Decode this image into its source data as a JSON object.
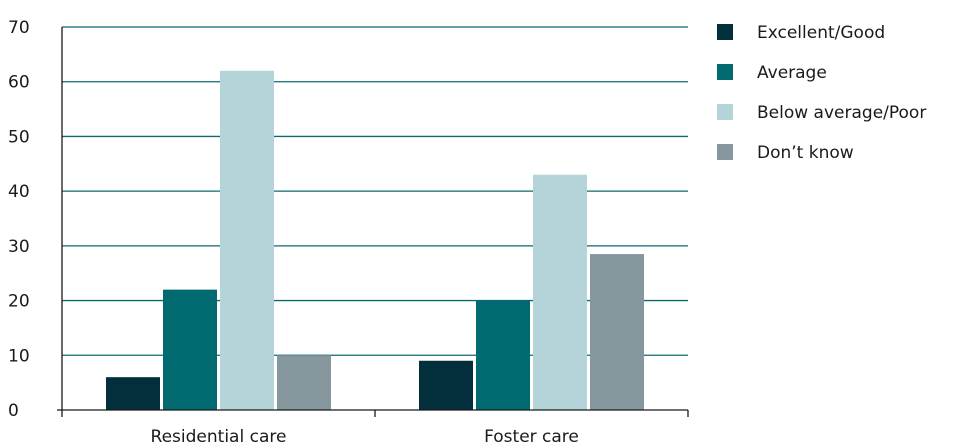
{
  "chart_data": {
    "type": "bar",
    "title": "",
    "xlabel": "",
    "ylabel": "",
    "categories": [
      "Residential care",
      "Foster care"
    ],
    "series": [
      {
        "name": "Excellent/Good",
        "values": [
          6,
          9
        ],
        "color": "#032f3d"
      },
      {
        "name": "Average",
        "values": [
          22,
          20
        ],
        "color": "#006a70"
      },
      {
        "name": "Below average/Poor",
        "values": [
          62,
          43
        ],
        "color": "#b5d4d9"
      },
      {
        "name": "Don’t know",
        "values": [
          10,
          28.5
        ],
        "color": "#86989e"
      }
    ],
    "ylim": [
      0,
      70
    ],
    "yticks": [
      0,
      10,
      20,
      30,
      40,
      50,
      60,
      70
    ],
    "grid": true,
    "legend_position": "right"
  }
}
